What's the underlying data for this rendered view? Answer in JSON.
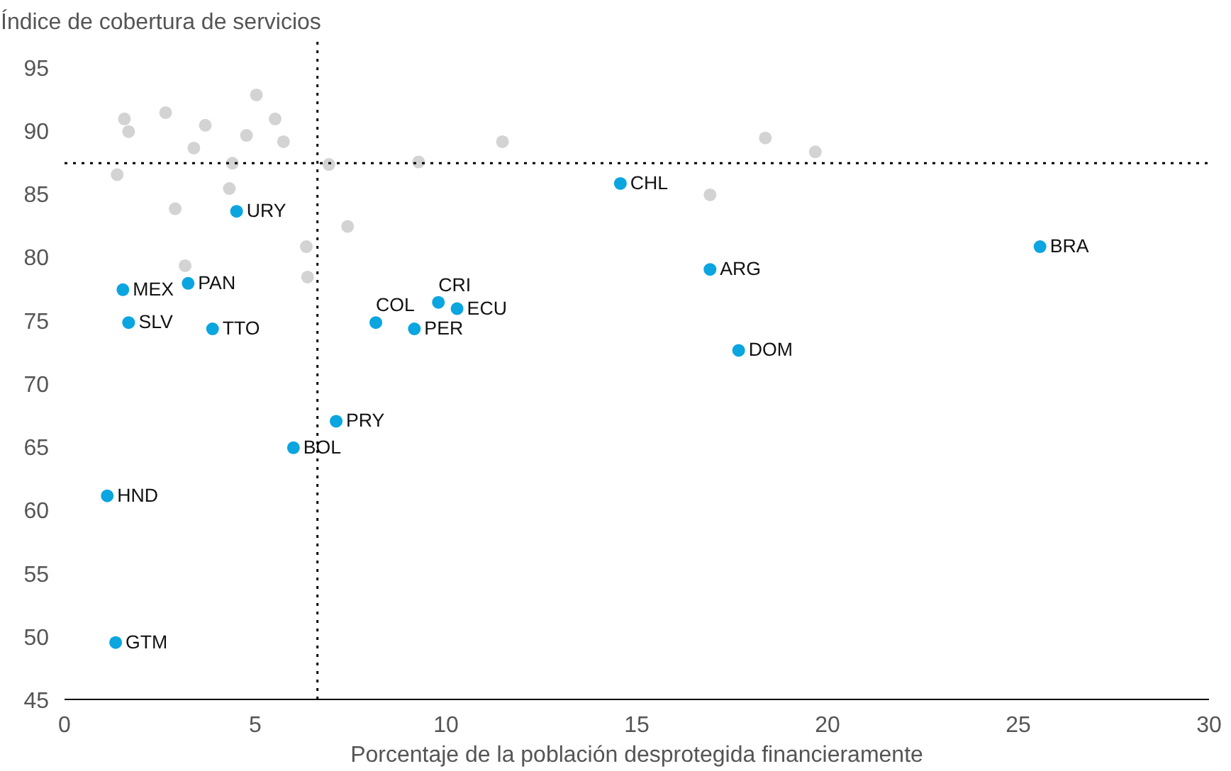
{
  "chart_data": {
    "type": "scatter",
    "xlabel": "Porcentaje de la población desprotegida financieramente",
    "ylabel": "Índice de cobertura de servicios",
    "xlim": [
      0,
      30
    ],
    "ylim": [
      45,
      97
    ],
    "xticks": [
      0,
      5,
      10,
      15,
      20,
      25,
      30
    ],
    "yticks": [
      45,
      50,
      55,
      60,
      65,
      70,
      75,
      80,
      85,
      90,
      95
    ],
    "grid": false,
    "marker": "circle",
    "series": [
      {
        "color": "#d3d3d3",
        "x": [
          1.57,
          1.68,
          1.38,
          2.65,
          3.39,
          3.69,
          2.9,
          3.16,
          4.4,
          4.32,
          4.77,
          5.03,
          5.52,
          5.74,
          6.93,
          6.34,
          6.37,
          7.42,
          9.28,
          11.48,
          16.92,
          18.37,
          19.68
        ],
        "values": [
          90.9,
          89.9,
          86.5,
          91.4,
          88.6,
          90.4,
          83.8,
          79.3,
          87.4,
          85.4,
          89.6,
          92.8,
          90.9,
          89.1,
          87.3,
          80.8,
          78.4,
          82.4,
          87.5,
          89.1,
          84.9,
          89.4,
          88.3
        ]
      },
      {
        "color": "#0ba5e0",
        "x": [
          4.51,
          14.57,
          25.57,
          16.92,
          17.67,
          9.8,
          10.29,
          8.16,
          9.17,
          1.53,
          3.24,
          1.68,
          3.88,
          7.12,
          6.0,
          1.12,
          1.34
        ],
        "values": [
          83.6,
          85.8,
          80.8,
          79.0,
          72.6,
          76.4,
          75.9,
          74.8,
          74.3,
          77.4,
          77.9,
          74.8,
          74.3,
          67.0,
          64.9,
          61.1,
          49.5
        ]
      }
    ],
    "annotations": [
      {
        "text": "URY",
        "x": 4.51,
        "y": 83.6
      },
      {
        "text": "CHL",
        "x": 14.57,
        "y": 85.8
      },
      {
        "text": "BRA",
        "x": 25.57,
        "y": 80.8
      },
      {
        "text": "ARG",
        "x": 16.92,
        "y": 79.0
      },
      {
        "text": "DOM",
        "x": 17.67,
        "y": 72.6
      },
      {
        "text": "CRI",
        "x": 9.8,
        "y": 76.4
      },
      {
        "text": "ECU",
        "x": 10.29,
        "y": 75.9
      },
      {
        "text": "COL",
        "x": 8.16,
        "y": 74.8
      },
      {
        "text": "PER",
        "x": 9.17,
        "y": 74.3
      },
      {
        "text": "MEX",
        "x": 1.53,
        "y": 77.4
      },
      {
        "text": "PAN",
        "x": 3.24,
        "y": 77.9
      },
      {
        "text": "SLV",
        "x": 1.68,
        "y": 74.8
      },
      {
        "text": "TTO",
        "x": 3.88,
        "y": 74.3
      },
      {
        "text": "PRY",
        "x": 7.12,
        "y": 67.0
      },
      {
        "text": "BOL",
        "x": 6.0,
        "y": 64.9
      },
      {
        "text": "HND",
        "x": 1.12,
        "y": 61.1
      },
      {
        "text": "GTM",
        "x": 1.34,
        "y": 49.5
      }
    ],
    "ref_lines": [
      {
        "axis": "x",
        "value": 6.63,
        "color": "#000000",
        "line_style": "dotted"
      },
      {
        "axis": "y",
        "value": 87.4,
        "color": "#000000",
        "line_style": "dotted"
      }
    ]
  }
}
